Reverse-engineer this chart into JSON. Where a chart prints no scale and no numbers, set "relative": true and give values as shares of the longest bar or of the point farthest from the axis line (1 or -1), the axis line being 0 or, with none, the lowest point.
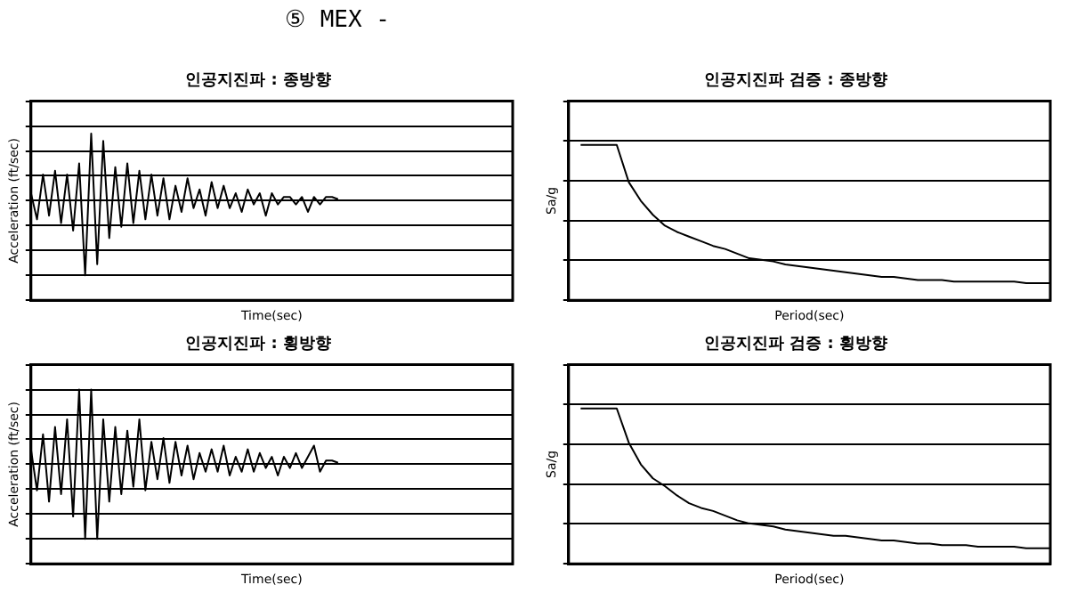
{
  "chart_data": [
    {
      "type": "line",
      "title": "인공지진파 : 종방향",
      "xlabel": "Time(sec)",
      "ylabel": "Acceleration (ft/sec)",
      "relative": true,
      "grid": "y",
      "legend": false,
      "tick_labels": false,
      "annotations": [
        "⑤ MEX -"
      ],
      "categories": [
        null,
        null,
        null,
        null,
        null,
        null,
        null,
        null,
        null,
        null,
        null,
        null,
        null,
        null,
        null,
        null,
        null,
        null,
        null,
        null,
        null,
        null,
        null,
        null,
        null,
        null,
        null,
        null,
        null,
        null,
        null,
        null,
        null,
        null,
        null,
        null,
        null,
        null,
        null,
        null,
        null,
        null,
        null,
        null,
        null,
        null,
        null,
        null,
        null,
        null,
        null,
        null,
        null,
        null,
        null,
        null,
        null,
        null,
        null,
        null,
        null,
        null,
        null,
        null,
        null,
        null,
        null,
        null,
        null,
        null,
        null,
        null,
        null,
        null,
        null,
        null,
        null,
        null,
        null,
        null,
        null
      ],
      "series": [
        {
          "color": "#000000",
          "values": [
            0.1,
            -0.25,
            0.35,
            -0.2,
            0.4,
            -0.3,
            0.35,
            -0.4,
            0.5,
            -1.0,
            0.9,
            -0.85,
            0.8,
            -0.5,
            0.45,
            -0.35,
            0.5,
            -0.3,
            0.4,
            -0.25,
            0.35,
            -0.2,
            0.3,
            -0.25,
            0.2,
            -0.15,
            0.3,
            -0.1,
            0.15,
            -0.2,
            0.25,
            -0.1,
            0.2,
            -0.1,
            0.1,
            -0.15,
            0.15,
            -0.05,
            0.1,
            -0.2,
            0.1,
            -0.05,
            0.05,
            0.05,
            -0.05,
            0.05,
            -0.15,
            0.05,
            -0.05,
            0.05,
            0.05,
            0.02,
            null,
            null,
            null,
            null,
            null,
            null,
            null,
            null,
            null,
            null,
            null,
            null,
            null,
            null,
            null,
            null,
            null,
            null,
            null,
            null,
            null,
            null,
            null,
            null,
            null,
            null,
            null,
            null,
            null
          ]
        }
      ]
    },
    {
      "type": "line",
      "title": "인공지진파 검증 : 종방향",
      "xlabel": "Period(sec)",
      "ylabel": "Sa/g",
      "relative": true,
      "grid": "y",
      "legend": false,
      "tick_labels": false,
      "categories": [
        null,
        null,
        null,
        null,
        null,
        null,
        null,
        null,
        null,
        null,
        null,
        null,
        null,
        null,
        null,
        null,
        null,
        null,
        null,
        null,
        null,
        null,
        null,
        null,
        null,
        null,
        null,
        null,
        null,
        null,
        null,
        null,
        null,
        null,
        null,
        null,
        null,
        null,
        null,
        null,
        null
      ],
      "series": [
        {
          "color": "#000000",
          "values": [
            null,
            1,
            1,
            1,
            1,
            0.76,
            0.64,
            0.55,
            0.48,
            0.44,
            0.41,
            0.38,
            0.35,
            0.33,
            0.3,
            0.27,
            0.26,
            0.25,
            0.23,
            0.22,
            0.21,
            0.2,
            0.19,
            0.18,
            0.17,
            0.16,
            0.15,
            0.15,
            0.14,
            0.13,
            0.13,
            0.13,
            0.12,
            0.12,
            0.12,
            0.12,
            0.12,
            0.12,
            0.11,
            0.11,
            0.11
          ]
        }
      ]
    },
    {
      "type": "line",
      "title": "인공지진파 : 횡방향",
      "xlabel": "Time(sec)",
      "ylabel": "Acceleration (ft/sec)",
      "relative": true,
      "grid": "y",
      "legend": false,
      "tick_labels": false,
      "categories": [
        null,
        null,
        null,
        null,
        null,
        null,
        null,
        null,
        null,
        null,
        null,
        null,
        null,
        null,
        null,
        null,
        null,
        null,
        null,
        null,
        null,
        null,
        null,
        null,
        null,
        null,
        null,
        null,
        null,
        null,
        null,
        null,
        null,
        null,
        null,
        null,
        null,
        null,
        null,
        null,
        null,
        null,
        null,
        null,
        null,
        null,
        null,
        null,
        null,
        null,
        null,
        null,
        null,
        null,
        null,
        null,
        null,
        null,
        null,
        null,
        null,
        null,
        null,
        null,
        null,
        null,
        null,
        null,
        null,
        null,
        null,
        null,
        null,
        null,
        null,
        null,
        null,
        null,
        null,
        null,
        null
      ],
      "series": [
        {
          "color": "#000000",
          "values": [
            0.2,
            -0.35,
            0.4,
            -0.5,
            0.5,
            -0.4,
            0.6,
            -0.7,
            1.0,
            -1.0,
            1.0,
            -1.0,
            0.6,
            -0.5,
            0.5,
            -0.4,
            0.45,
            -0.3,
            0.6,
            -0.35,
            0.3,
            -0.2,
            0.35,
            -0.25,
            0.3,
            -0.15,
            0.25,
            -0.2,
            0.15,
            -0.1,
            0.2,
            -0.1,
            0.25,
            -0.15,
            0.1,
            -0.1,
            0.2,
            -0.1,
            0.15,
            -0.05,
            0.1,
            -0.15,
            0.1,
            -0.05,
            0.15,
            -0.05,
            0.1,
            0.25,
            -0.1,
            0.05,
            0.05,
            0.02,
            null,
            null,
            null,
            null,
            null,
            null,
            null,
            null,
            null,
            null,
            null,
            null,
            null,
            null,
            null,
            null,
            null,
            null,
            null,
            null,
            null,
            null,
            null,
            null,
            null,
            null,
            null,
            null,
            null
          ]
        }
      ]
    },
    {
      "type": "line",
      "title": "인공지진파 검증 : 횡방향",
      "xlabel": "Period(sec)",
      "ylabel": "Sa/g",
      "relative": true,
      "grid": "y",
      "legend": false,
      "tick_labels": false,
      "categories": [
        null,
        null,
        null,
        null,
        null,
        null,
        null,
        null,
        null,
        null,
        null,
        null,
        null,
        null,
        null,
        null,
        null,
        null,
        null,
        null,
        null,
        null,
        null,
        null,
        null,
        null,
        null,
        null,
        null,
        null,
        null,
        null,
        null,
        null,
        null,
        null,
        null,
        null,
        null,
        null,
        null
      ],
      "series": [
        {
          "color": "#000000",
          "values": [
            null,
            1,
            1,
            1,
            1,
            0.78,
            0.64,
            0.55,
            0.5,
            0.44,
            0.39,
            0.36,
            0.34,
            0.31,
            0.28,
            0.26,
            0.25,
            0.24,
            0.22,
            0.21,
            0.2,
            0.19,
            0.18,
            0.18,
            0.17,
            0.16,
            0.15,
            0.15,
            0.14,
            0.13,
            0.13,
            0.12,
            0.12,
            0.12,
            0.11,
            0.11,
            0.11,
            0.11,
            0.1,
            0.1,
            0.1
          ]
        }
      ]
    }
  ]
}
